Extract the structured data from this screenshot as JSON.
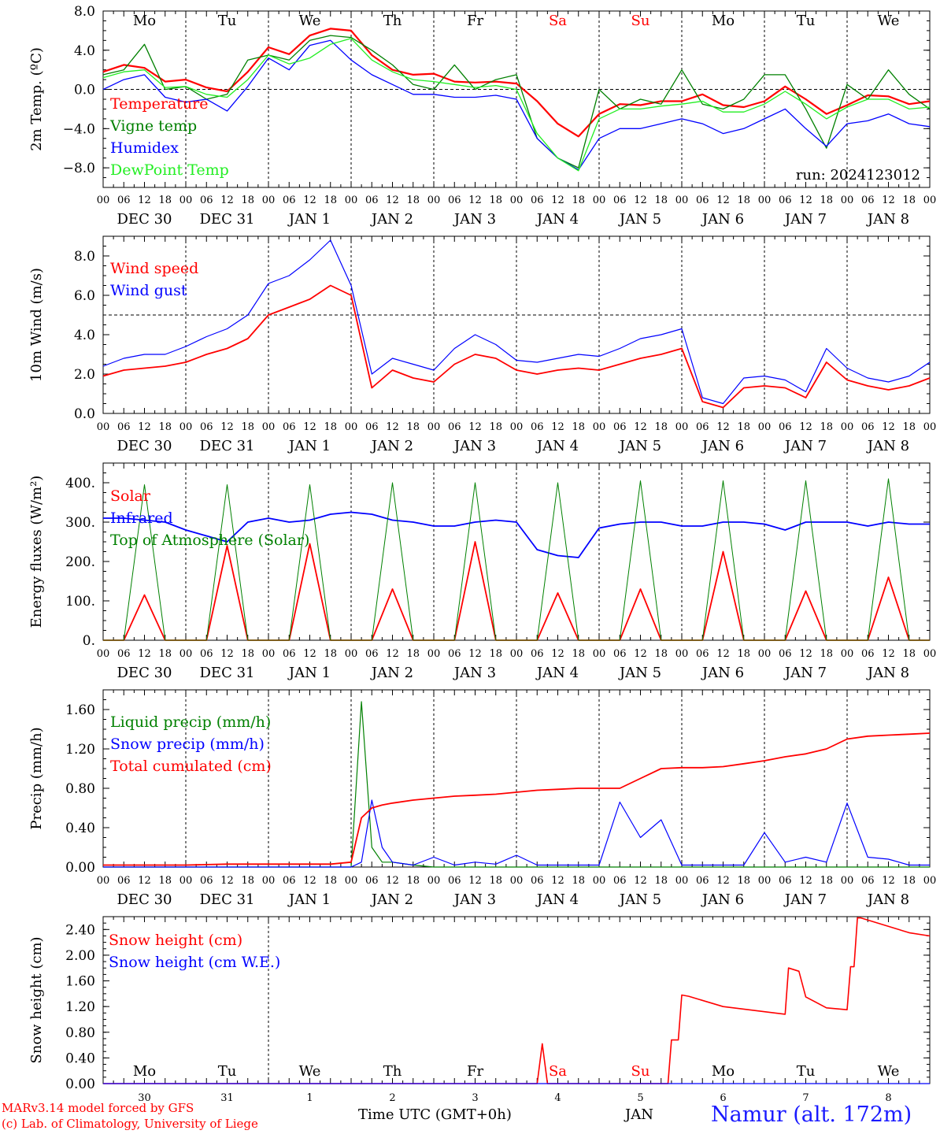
{
  "colors": {
    "red": "#ff0000",
    "darkgreen": "#008000",
    "blue": "#0000ff",
    "lightgreen": "#22ee22",
    "black": "#000000",
    "title_blue": "#1a1aff"
  },
  "time_ticks": [
    "00",
    "06",
    "12",
    "18"
  ],
  "date_labels": [
    "DEC 30",
    "DEC 31",
    "JAN  1",
    "JAN  2",
    "JAN  3",
    "JAN  4",
    "JAN  5",
    "JAN  6",
    "JAN  7",
    "JAN  8"
  ],
  "weekday_labels": [
    {
      "text": "Mo",
      "color": "#000000"
    },
    {
      "text": "Tu",
      "color": "#000000"
    },
    {
      "text": "We",
      "color": "#000000"
    },
    {
      "text": "Th",
      "color": "#000000"
    },
    {
      "text": "Fr",
      "color": "#000000"
    },
    {
      "text": "Sa",
      "color": "#ff0000"
    },
    {
      "text": "Su",
      "color": "#ff0000"
    },
    {
      "text": "Mo",
      "color": "#000000"
    },
    {
      "text": "Tu",
      "color": "#000000"
    },
    {
      "text": "We",
      "color": "#000000"
    }
  ],
  "bottom_day_numbers": [
    "30",
    "31",
    "1",
    "2",
    "3",
    "4",
    "5",
    "6",
    "7",
    "8"
  ],
  "footer": {
    "model_line1": "MARv3.14 model forced by GFS",
    "model_line2": "(c) Lab. of Climatology, University of Liege",
    "time_axis_label": "Time UTC (GMT+0h)",
    "month_label": "JAN",
    "station": "Namur (alt. 172m)"
  },
  "chart_data": [
    {
      "type": "line",
      "ylabel": "2m Temp. (ºC)",
      "ylim": [
        -10,
        8
      ],
      "yticks": [
        -8,
        -4,
        0,
        4,
        8
      ],
      "ytick_labels": [
        "−8.0",
        "−4.0",
        "0.0",
        "4.0",
        "8.0"
      ],
      "hline": 0,
      "annotation": "run: 2024123012",
      "x_hours": [
        0,
        6,
        12,
        18,
        24,
        30,
        36,
        42,
        48,
        54,
        60,
        66,
        72,
        78,
        84,
        90,
        96,
        102,
        108,
        114,
        120,
        126,
        132,
        138,
        144,
        150,
        156,
        162,
        168,
        174,
        180,
        186,
        192,
        198,
        204,
        210,
        216,
        222,
        228,
        234,
        240
      ],
      "series": [
        {
          "name": "Temperature",
          "color": "#ff0000",
          "width": 2.2,
          "values": [
            1.8,
            2.5,
            2.2,
            0.8,
            1.0,
            0.2,
            -0.2,
            1.8,
            4.3,
            3.6,
            5.5,
            6.2,
            6.0,
            3.5,
            2.0,
            1.5,
            1.6,
            0.8,
            0.7,
            0.8,
            0.6,
            -1.2,
            -3.5,
            -4.8,
            -2.5,
            -1.5,
            -1.6,
            -1.2,
            -1.2,
            -0.5,
            -1.6,
            -1.8,
            -1.2,
            0.3,
            -1.0,
            -2.5,
            -1.6,
            -0.6,
            -0.7,
            -1.5,
            -1.2
          ]
        },
        {
          "name": "Vigne temp",
          "color": "#008000",
          "width": 1.3,
          "values": [
            1.5,
            2.0,
            4.6,
            0.0,
            0.3,
            -1.0,
            -0.5,
            3.0,
            3.5,
            3.0,
            5.0,
            5.5,
            5.3,
            4.0,
            2.5,
            0.5,
            0.0,
            2.5,
            0.0,
            1.0,
            1.5,
            -5.0,
            -7.0,
            -8.0,
            0.0,
            -2.0,
            -1.0,
            -1.5,
            2.0,
            -1.5,
            -2.0,
            -1.0,
            1.5,
            1.5,
            -2.0,
            -6.0,
            0.5,
            -1.0,
            2.0,
            -0.5,
            -2.0
          ]
        },
        {
          "name": "Humidex",
          "color": "#0000ff",
          "width": 1.3,
          "values": [
            0.0,
            1.0,
            1.5,
            -0.8,
            -1.3,
            -1.0,
            -2.2,
            0.3,
            3.2,
            2.0,
            4.5,
            5.0,
            3.0,
            1.5,
            0.5,
            -0.5,
            -0.5,
            -0.8,
            -0.8,
            -0.6,
            -1.0,
            -5.0,
            -7.0,
            -8.2,
            -5.0,
            -4.0,
            -4.0,
            -3.5,
            -3.0,
            -3.5,
            -4.5,
            -4.0,
            -3.0,
            -2.0,
            -4.0,
            -5.8,
            -3.5,
            -3.2,
            -2.5,
            -3.5,
            -3.8
          ]
        },
        {
          "name": "DewPoint Temp",
          "color": "#22ee22",
          "width": 1.3,
          "values": [
            1.2,
            1.8,
            2.0,
            0.2,
            0.3,
            -0.5,
            -0.8,
            1.0,
            3.5,
            2.6,
            3.2,
            4.6,
            5.2,
            3.0,
            1.8,
            1.0,
            0.8,
            0.5,
            0.2,
            0.4,
            0.0,
            -4.5,
            -7.0,
            -8.3,
            -3.0,
            -2.0,
            -2.0,
            -1.7,
            -1.5,
            -1.2,
            -2.3,
            -2.3,
            -1.5,
            -0.2,
            -1.5,
            -3.0,
            -1.8,
            -1.0,
            -1.0,
            -2.0,
            -1.8
          ]
        }
      ]
    },
    {
      "type": "line",
      "ylabel": "10m Wind (m/s)",
      "ylim": [
        0,
        9
      ],
      "yticks": [
        0,
        2,
        4,
        6,
        8
      ],
      "ytick_labels": [
        "0.0",
        "2.0",
        "4.0",
        "6.0",
        "8.0"
      ],
      "hline": 5,
      "x_hours": [
        0,
        6,
        12,
        18,
        24,
        30,
        36,
        42,
        48,
        54,
        60,
        66,
        72,
        78,
        84,
        90,
        96,
        102,
        108,
        114,
        120,
        126,
        132,
        138,
        144,
        150,
        156,
        162,
        168,
        174,
        180,
        186,
        192,
        198,
        204,
        210,
        216,
        222,
        228,
        234,
        240
      ],
      "series": [
        {
          "name": "Wind speed",
          "color": "#ff0000",
          "width": 1.8,
          "values": [
            1.9,
            2.2,
            2.3,
            2.4,
            2.6,
            3.0,
            3.3,
            3.8,
            5.0,
            5.4,
            5.8,
            6.5,
            6.0,
            1.3,
            2.2,
            1.8,
            1.6,
            2.5,
            3.0,
            2.8,
            2.2,
            2.0,
            2.2,
            2.3,
            2.2,
            2.5,
            2.8,
            3.0,
            3.3,
            0.6,
            0.3,
            1.3,
            1.4,
            1.3,
            0.8,
            2.6,
            1.7,
            1.4,
            1.2,
            1.4,
            1.8
          ]
        },
        {
          "name": "Wind gust",
          "color": "#0000ff",
          "width": 1.2,
          "values": [
            2.4,
            2.8,
            3.0,
            3.0,
            3.4,
            3.9,
            4.3,
            5.0,
            6.6,
            7.0,
            7.8,
            8.8,
            6.5,
            2.0,
            2.8,
            2.5,
            2.2,
            3.3,
            4.0,
            3.5,
            2.7,
            2.6,
            2.8,
            3.0,
            2.9,
            3.3,
            3.8,
            4.0,
            4.3,
            0.8,
            0.5,
            1.8,
            1.9,
            1.7,
            1.1,
            3.3,
            2.3,
            1.8,
            1.6,
            1.9,
            2.6
          ]
        }
      ]
    },
    {
      "type": "line",
      "ylabel": "Energy fluxes (W/m²)",
      "ylim": [
        0,
        450
      ],
      "yticks": [
        0,
        100,
        200,
        300,
        400
      ],
      "ytick_labels": [
        "0.",
        "100.",
        "200.",
        "300.",
        "400."
      ],
      "x_hours": [
        0,
        6,
        12,
        18,
        24,
        30,
        36,
        42,
        48,
        54,
        60,
        66,
        72,
        78,
        84,
        90,
        96,
        102,
        108,
        114,
        120,
        126,
        132,
        138,
        144,
        150,
        156,
        162,
        168,
        174,
        180,
        186,
        192,
        198,
        204,
        210,
        216,
        222,
        228,
        234,
        240
      ],
      "series": [
        {
          "name": "Solar",
          "color": "#ff0000",
          "width": 1.8,
          "values": [
            0,
            0,
            115,
            0,
            0,
            0,
            240,
            0,
            0,
            0,
            245,
            0,
            0,
            0,
            130,
            0,
            0,
            0,
            250,
            0,
            0,
            0,
            120,
            0,
            0,
            0,
            130,
            0,
            0,
            0,
            225,
            0,
            0,
            0,
            125,
            0,
            0,
            0,
            160,
            0,
            0
          ]
        },
        {
          "name": "Infrared",
          "color": "#0000ff",
          "width": 1.8,
          "values": [
            310,
            310,
            305,
            300,
            280,
            265,
            250,
            300,
            310,
            300,
            305,
            320,
            325,
            320,
            305,
            300,
            290,
            290,
            300,
            305,
            300,
            230,
            215,
            210,
            285,
            295,
            300,
            300,
            290,
            290,
            300,
            300,
            295,
            280,
            300,
            300,
            300,
            290,
            300,
            295,
            295
          ]
        },
        {
          "name": "Top of Atmosphere (Solar)",
          "color": "#008000",
          "width": 1.0,
          "values": [
            0,
            0,
            395,
            0,
            0,
            0,
            395,
            0,
            0,
            0,
            395,
            0,
            0,
            0,
            400,
            0,
            0,
            0,
            400,
            0,
            0,
            0,
            400,
            0,
            0,
            0,
            405,
            0,
            0,
            0,
            405,
            0,
            0,
            0,
            405,
            0,
            0,
            0,
            410,
            0,
            0
          ]
        }
      ]
    },
    {
      "type": "line",
      "ylabel": "Precip (mm/h)",
      "ylim": [
        0,
        1.8
      ],
      "yticks": [
        0,
        0.4,
        0.8,
        1.2,
        1.6
      ],
      "ytick_labels": [
        "0.00",
        "0.40",
        "0.80",
        "1.20",
        "1.60"
      ],
      "x_hours": [
        0,
        6,
        12,
        18,
        24,
        30,
        36,
        42,
        48,
        54,
        60,
        66,
        72,
        75,
        78,
        81,
        84,
        90,
        96,
        102,
        108,
        114,
        120,
        126,
        132,
        138,
        144,
        150,
        156,
        162,
        168,
        174,
        180,
        186,
        192,
        198,
        204,
        210,
        216,
        222,
        228,
        234,
        240
      ],
      "series": [
        {
          "name": "Liquid precip (mm/h)",
          "color": "#008000",
          "width": 1.2,
          "values": [
            0,
            0,
            0,
            0,
            0,
            0,
            0,
            0,
            0,
            0,
            0,
            0,
            0,
            1.68,
            0.2,
            0.05,
            0.05,
            0.02,
            0,
            0,
            0,
            0,
            0,
            0,
            0,
            0,
            0,
            0,
            0,
            0,
            0,
            0,
            0,
            0,
            0,
            0,
            0,
            0,
            0,
            0,
            0,
            0,
            0
          ]
        },
        {
          "name": "Snow precip (mm/h)",
          "color": "#0000ff",
          "width": 1.2,
          "values": [
            0,
            0,
            0,
            0,
            0,
            0,
            0,
            0,
            0,
            0,
            0,
            0,
            0,
            0.05,
            0.68,
            0.2,
            0.05,
            0.02,
            0.1,
            0.02,
            0.05,
            0.03,
            0.12,
            0.02,
            0.02,
            0.02,
            0.02,
            0.66,
            0.3,
            0.48,
            0.02,
            0.02,
            0.02,
            0.02,
            0.35,
            0.05,
            0.1,
            0.05,
            0.65,
            0.1,
            0.08,
            0.02,
            0.02
          ]
        },
        {
          "name": "Total cumulated (cm)",
          "color": "#ff0000",
          "width": 1.8,
          "values": [
            0.02,
            0.02,
            0.02,
            0.02,
            0.02,
            0.025,
            0.03,
            0.03,
            0.03,
            0.03,
            0.03,
            0.03,
            0.05,
            0.5,
            0.6,
            0.63,
            0.65,
            0.68,
            0.7,
            0.72,
            0.73,
            0.74,
            0.76,
            0.78,
            0.79,
            0.8,
            0.8,
            0.8,
            0.9,
            1.0,
            1.01,
            1.01,
            1.02,
            1.05,
            1.08,
            1.12,
            1.15,
            1.2,
            1.3,
            1.33,
            1.34,
            1.35,
            1.36
          ]
        }
      ]
    },
    {
      "type": "line",
      "ylabel": "Snow height (cm)",
      "ylim": [
        0,
        2.6
      ],
      "yticks": [
        0,
        0.4,
        0.8,
        1.2,
        1.6,
        2.0,
        2.4
      ],
      "ytick_labels": [
        "0.00",
        "0.40",
        "0.80",
        "1.20",
        "1.60",
        "2.00",
        "2.40"
      ],
      "x_hours": [
        0,
        24,
        48,
        72,
        96,
        126,
        127.5,
        129,
        144,
        164,
        165,
        167,
        168,
        170,
        180,
        192,
        198,
        199,
        202,
        204,
        210,
        216,
        217,
        218,
        219,
        220,
        234,
        240
      ],
      "series": [
        {
          "name": "Snow height (cm)",
          "color": "#ff0000",
          "width": 1.6,
          "values": [
            0,
            0,
            0,
            0,
            0,
            0,
            0.62,
            0,
            0,
            0,
            0.68,
            0.68,
            1.38,
            1.36,
            1.2,
            1.12,
            1.08,
            1.8,
            1.75,
            1.35,
            1.18,
            1.15,
            1.82,
            1.82,
            2.58,
            2.58,
            2.35,
            2.3
          ]
        },
        {
          "name": "Snow height (cm W.E.)",
          "color": "#0000ff",
          "width": 1.2,
          "values": [
            0,
            0,
            0,
            0,
            0,
            0,
            0,
            0,
            0,
            0,
            0,
            0,
            0,
            0,
            0,
            0,
            0,
            0,
            0,
            0,
            0,
            0,
            0,
            0,
            0,
            0,
            0,
            0
          ]
        }
      ]
    }
  ]
}
